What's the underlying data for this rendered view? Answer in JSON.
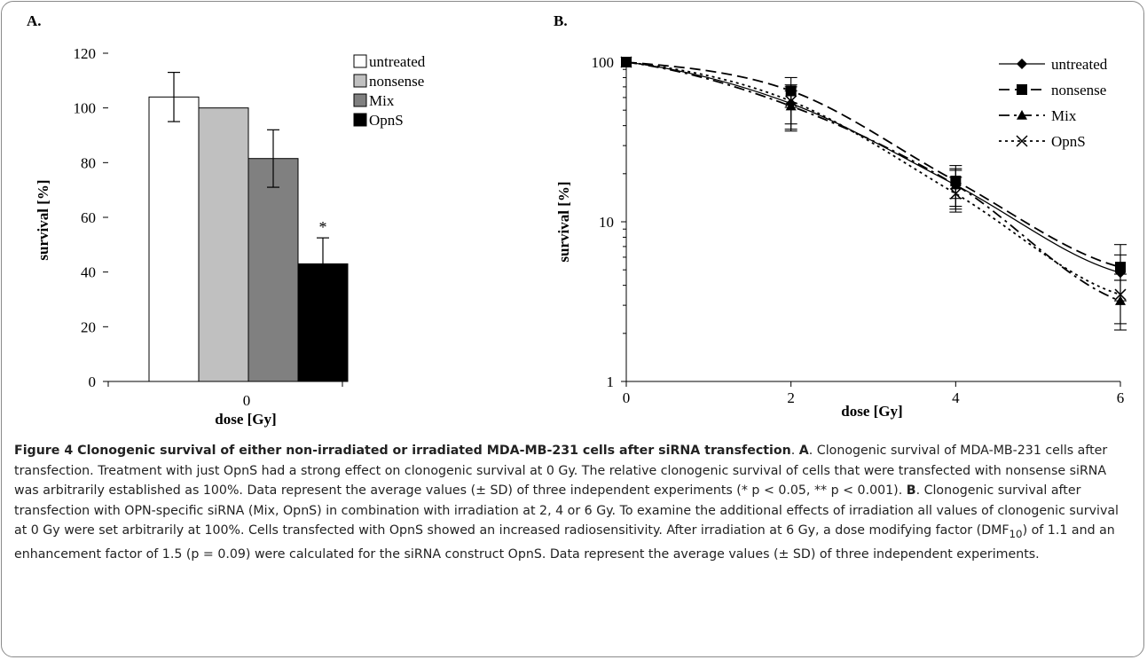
{
  "panel_a_label": "A.",
  "panel_b_label": "B.",
  "chart_data": [
    {
      "type": "bar",
      "panel": "A.",
      "categories": [
        "0"
      ],
      "series": [
        {
          "name": "untreated",
          "values": [
            104
          ],
          "error": [
            9
          ],
          "color": "#ffffff"
        },
        {
          "name": "nonsense",
          "values": [
            100
          ],
          "error": [
            0
          ],
          "color": "#c0c0c0"
        },
        {
          "name": "Mix",
          "values": [
            81.5
          ],
          "error": [
            10.5
          ],
          "color": "#808080"
        },
        {
          "name": "OpnS",
          "values": [
            43
          ],
          "error": [
            9.5
          ],
          "color": "#000000"
        }
      ],
      "annotations": [
        {
          "series": "OpnS",
          "text": "*"
        }
      ],
      "xlabel": "dose [Gy]",
      "ylabel": "survival [%]",
      "ylim": [
        0,
        120
      ],
      "yticks": [
        "0",
        "20",
        "40",
        "60",
        "80",
        "100",
        "120"
      ],
      "legend": "top-right",
      "grid": false
    },
    {
      "type": "line",
      "panel": "B.",
      "x": [
        0,
        2,
        4,
        6
      ],
      "xticks": [
        "0",
        "2",
        "4",
        "6"
      ],
      "yscale": "log",
      "ylim": [
        1,
        100
      ],
      "yticks": [
        "1",
        "10",
        "100"
      ],
      "xlabel": "dose [Gy]",
      "ylabel": "survival [%]",
      "legend": "top-right",
      "grid": false,
      "series": [
        {
          "name": "untreated",
          "marker": "diamond",
          "dash": "solid",
          "values": [
            100,
            55,
            17,
            4.8
          ],
          "err_low": [
            100,
            38,
            12.5,
            3.2
          ],
          "err_high": [
            100,
            70,
            21,
            7.2
          ]
        },
        {
          "name": "nonsense",
          "marker": "square",
          "dash": "dashed",
          "values": [
            100,
            66,
            18,
            5.2
          ],
          "err_low": [
            100,
            52,
            14,
            4.3
          ],
          "err_high": [
            100,
            80,
            22.5,
            6.2
          ]
        },
        {
          "name": "Mix",
          "marker": "triangle",
          "dash": "dashdot",
          "values": [
            100,
            53,
            17,
            3.2
          ],
          "err_low": [
            100,
            37,
            12,
            2.1
          ],
          "err_high": [
            100,
            66,
            21.5,
            4.3
          ]
        },
        {
          "name": "OpnS",
          "marker": "x",
          "dash": "dotted",
          "values": [
            100,
            57,
            15,
            3.5
          ],
          "err_low": [
            100,
            41,
            11.5,
            2.3
          ],
          "err_high": [
            100,
            72,
            19,
            4.7
          ]
        }
      ]
    }
  ],
  "caption": {
    "title": "Figure 4 Clonogenic survival of either non-irradiated or irradiated MDA-MB-231 cells after siRNA transfection",
    "sep1": ". ",
    "a_label": "A",
    "part_a": ". Clonogenic survival of MDA-MB-231 cells after transfection. Treatment with just OpnS had a strong effect on clonogenic survival at 0 Gy. The relative clonogenic survival of cells that were transfected with nonsense siRNA was arbitrarily established as 100%. Data represent the average values (± SD) of three independent experiments (* p < 0.05, ** p < 0.001). ",
    "b_label": "B",
    "part_b1": ". Clonogenic survival after transfection with OPN-specific siRNA (Mix, OpnS) in combination with irradiation at 2, 4 or 6 Gy. To examine the additional effects of irradiation all values of clonogenic survival at 0 Gy were set arbitrarily at 100%. Cells transfected with OpnS showed an increased radiosensitivity. After irradiation at 6 Gy, a dose modifying factor (DMF",
    "dmf_sub": "10",
    "part_b2": ") of 1.1 and an enhancement factor of 1.5 (p = 0.09) were calculated for the siRNA construct OpnS. Data represent the average values (± SD) of three independent experiments."
  }
}
